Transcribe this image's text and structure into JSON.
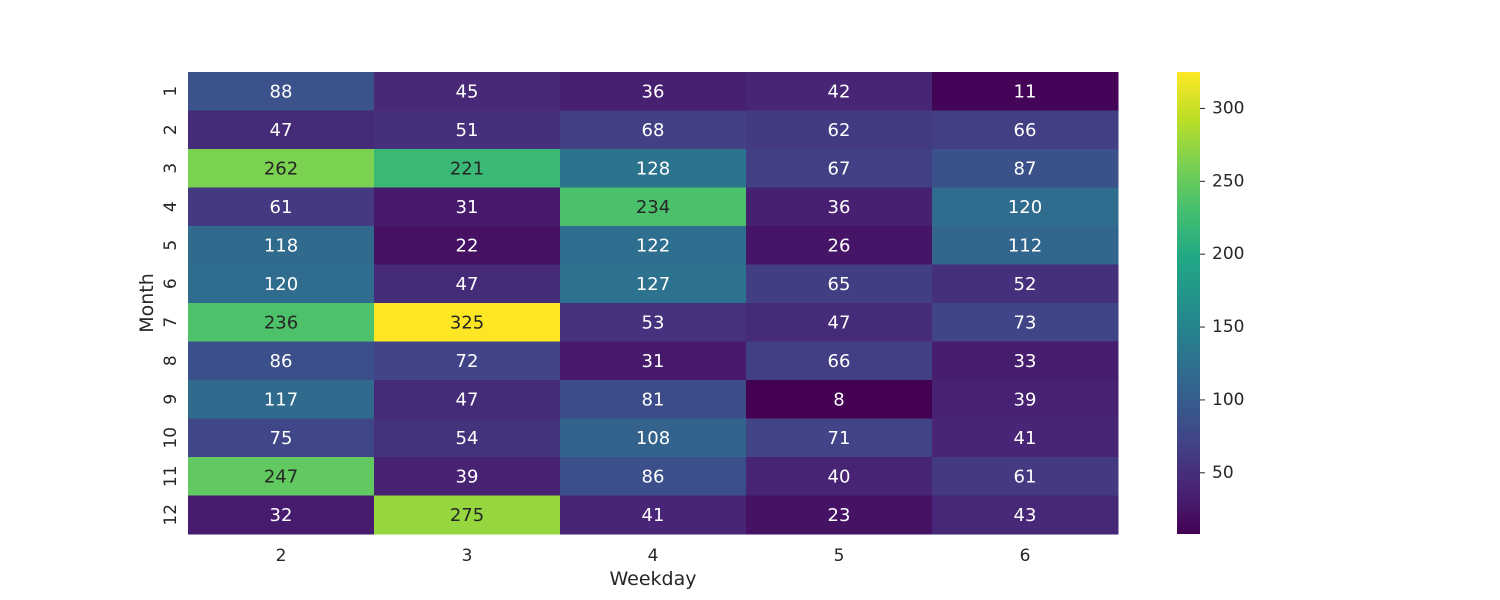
{
  "chart_data": {
    "type": "heatmap",
    "xlabel": "Weekday",
    "ylabel": "Month",
    "x_categories": [
      "2",
      "3",
      "4",
      "5",
      "6"
    ],
    "y_categories": [
      "1",
      "2",
      "3",
      "4",
      "5",
      "6",
      "7",
      "8",
      "9",
      "10",
      "11",
      "12"
    ],
    "values": [
      [
        88,
        45,
        36,
        42,
        11
      ],
      [
        47,
        51,
        68,
        62,
        66
      ],
      [
        262,
        221,
        128,
        67,
        87
      ],
      [
        61,
        31,
        234,
        36,
        120
      ],
      [
        118,
        22,
        122,
        26,
        112
      ],
      [
        120,
        47,
        127,
        65,
        52
      ],
      [
        236,
        325,
        53,
        47,
        73
      ],
      [
        86,
        72,
        31,
        66,
        33
      ],
      [
        117,
        47,
        81,
        8,
        39
      ],
      [
        75,
        54,
        108,
        71,
        41
      ],
      [
        247,
        39,
        86,
        40,
        61
      ],
      [
        32,
        275,
        41,
        23,
        43
      ]
    ],
    "value_range": [
      8,
      325
    ],
    "colormap": "viridis",
    "annotated": true,
    "colorbar": {
      "ticks": [
        50,
        100,
        150,
        200,
        250,
        300
      ],
      "tick_labels": [
        "50",
        "100",
        "150",
        "200",
        "250",
        "300"
      ],
      "placement": "right"
    }
  }
}
